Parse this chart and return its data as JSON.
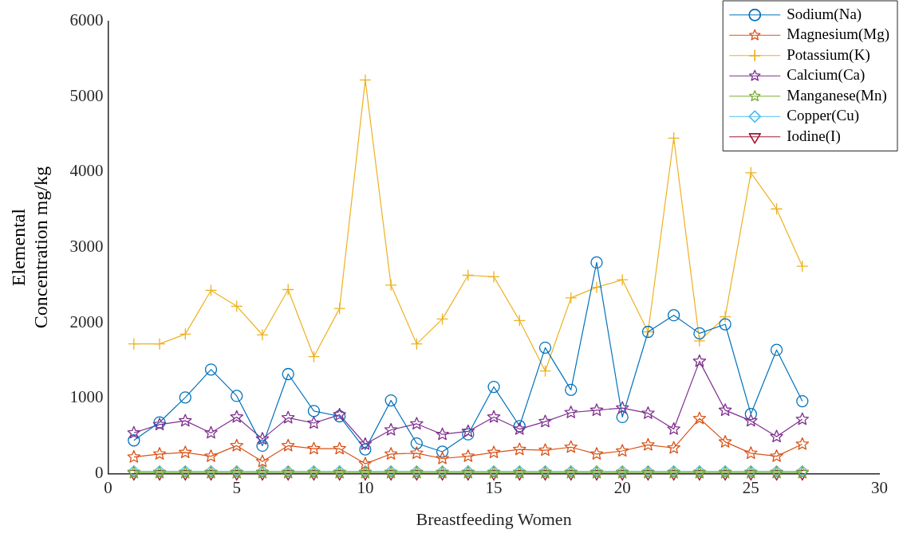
{
  "chart_data": {
    "type": "line",
    "xlabel": "Breastfeeding Women",
    "ylabel": "Elemental\nConcentration mg/kg",
    "x": [
      1,
      2,
      3,
      4,
      5,
      6,
      7,
      8,
      9,
      10,
      11,
      12,
      13,
      14,
      15,
      16,
      17,
      18,
      19,
      20,
      21,
      22,
      23,
      24,
      25,
      26,
      27
    ],
    "xlim": [
      0,
      30
    ],
    "xticks": [
      0,
      5,
      10,
      15,
      20,
      25,
      30
    ],
    "ylim": [
      0,
      6000
    ],
    "yticks": [
      0,
      1000,
      2000,
      3000,
      4000,
      5000,
      6000
    ],
    "grid": false,
    "legend": "top right",
    "line_style": "solid",
    "series": [
      {
        "name": "Sodium(Na)",
        "color": "#0072bd",
        "marker": "circle",
        "values": [
          440,
          680,
          1010,
          1380,
          1030,
          370,
          1320,
          830,
          760,
          320,
          970,
          400,
          290,
          520,
          1150,
          630,
          1670,
          1110,
          2800,
          750,
          1880,
          2100,
          1860,
          1980,
          790,
          1640,
          960
        ]
      },
      {
        "name": "Magnesium(Mg)",
        "color": "#d95319",
        "marker": "star",
        "values": [
          220,
          260,
          280,
          230,
          370,
          160,
          370,
          330,
          330,
          130,
          260,
          270,
          200,
          230,
          280,
          320,
          310,
          350,
          260,
          300,
          380,
          340,
          730,
          420,
          270,
          230,
          390
        ]
      },
      {
        "name": "Potassium(K)",
        "color": "#edb120",
        "marker": "cross",
        "values": [
          1720,
          1720,
          1850,
          2430,
          2220,
          1840,
          2440,
          1550,
          2190,
          5220,
          2500,
          1720,
          2050,
          2630,
          2610,
          2030,
          1360,
          2330,
          2470,
          2570,
          1880,
          4450,
          1760,
          2080,
          3990,
          3510,
          2750
        ]
      },
      {
        "name": "Calcium(Ca)",
        "color": "#7e2f8e",
        "marker": "star",
        "values": [
          540,
          650,
          700,
          540,
          750,
          460,
          740,
          670,
          780,
          390,
          580,
          660,
          520,
          560,
          750,
          590,
          690,
          810,
          840,
          870,
          800,
          590,
          1490,
          840,
          700,
          490,
          720
        ]
      },
      {
        "name": "Manganese(Mn)",
        "color": "#77ac30",
        "marker": "star",
        "values": [
          10,
          10,
          10,
          10,
          10,
          10,
          10,
          10,
          10,
          10,
          10,
          10,
          10,
          10,
          10,
          10,
          10,
          10,
          10,
          10,
          10,
          10,
          10,
          10,
          10,
          10,
          10
        ]
      },
      {
        "name": "Copper(Cu)",
        "color": "#4dbeee",
        "marker": "diamond",
        "values": [
          30,
          30,
          30,
          30,
          30,
          30,
          30,
          30,
          30,
          30,
          30,
          30,
          30,
          30,
          30,
          30,
          30,
          30,
          30,
          30,
          30,
          30,
          30,
          30,
          30,
          30,
          30
        ]
      },
      {
        "name": "Iodine(I)",
        "color": "#a2142f",
        "marker": "triangle",
        "values": [
          0,
          0,
          0,
          0,
          0,
          0,
          0,
          0,
          0,
          0,
          0,
          0,
          0,
          0,
          0,
          0,
          0,
          0,
          0,
          0,
          0,
          0,
          0,
          0,
          0,
          0,
          0
        ]
      }
    ]
  }
}
